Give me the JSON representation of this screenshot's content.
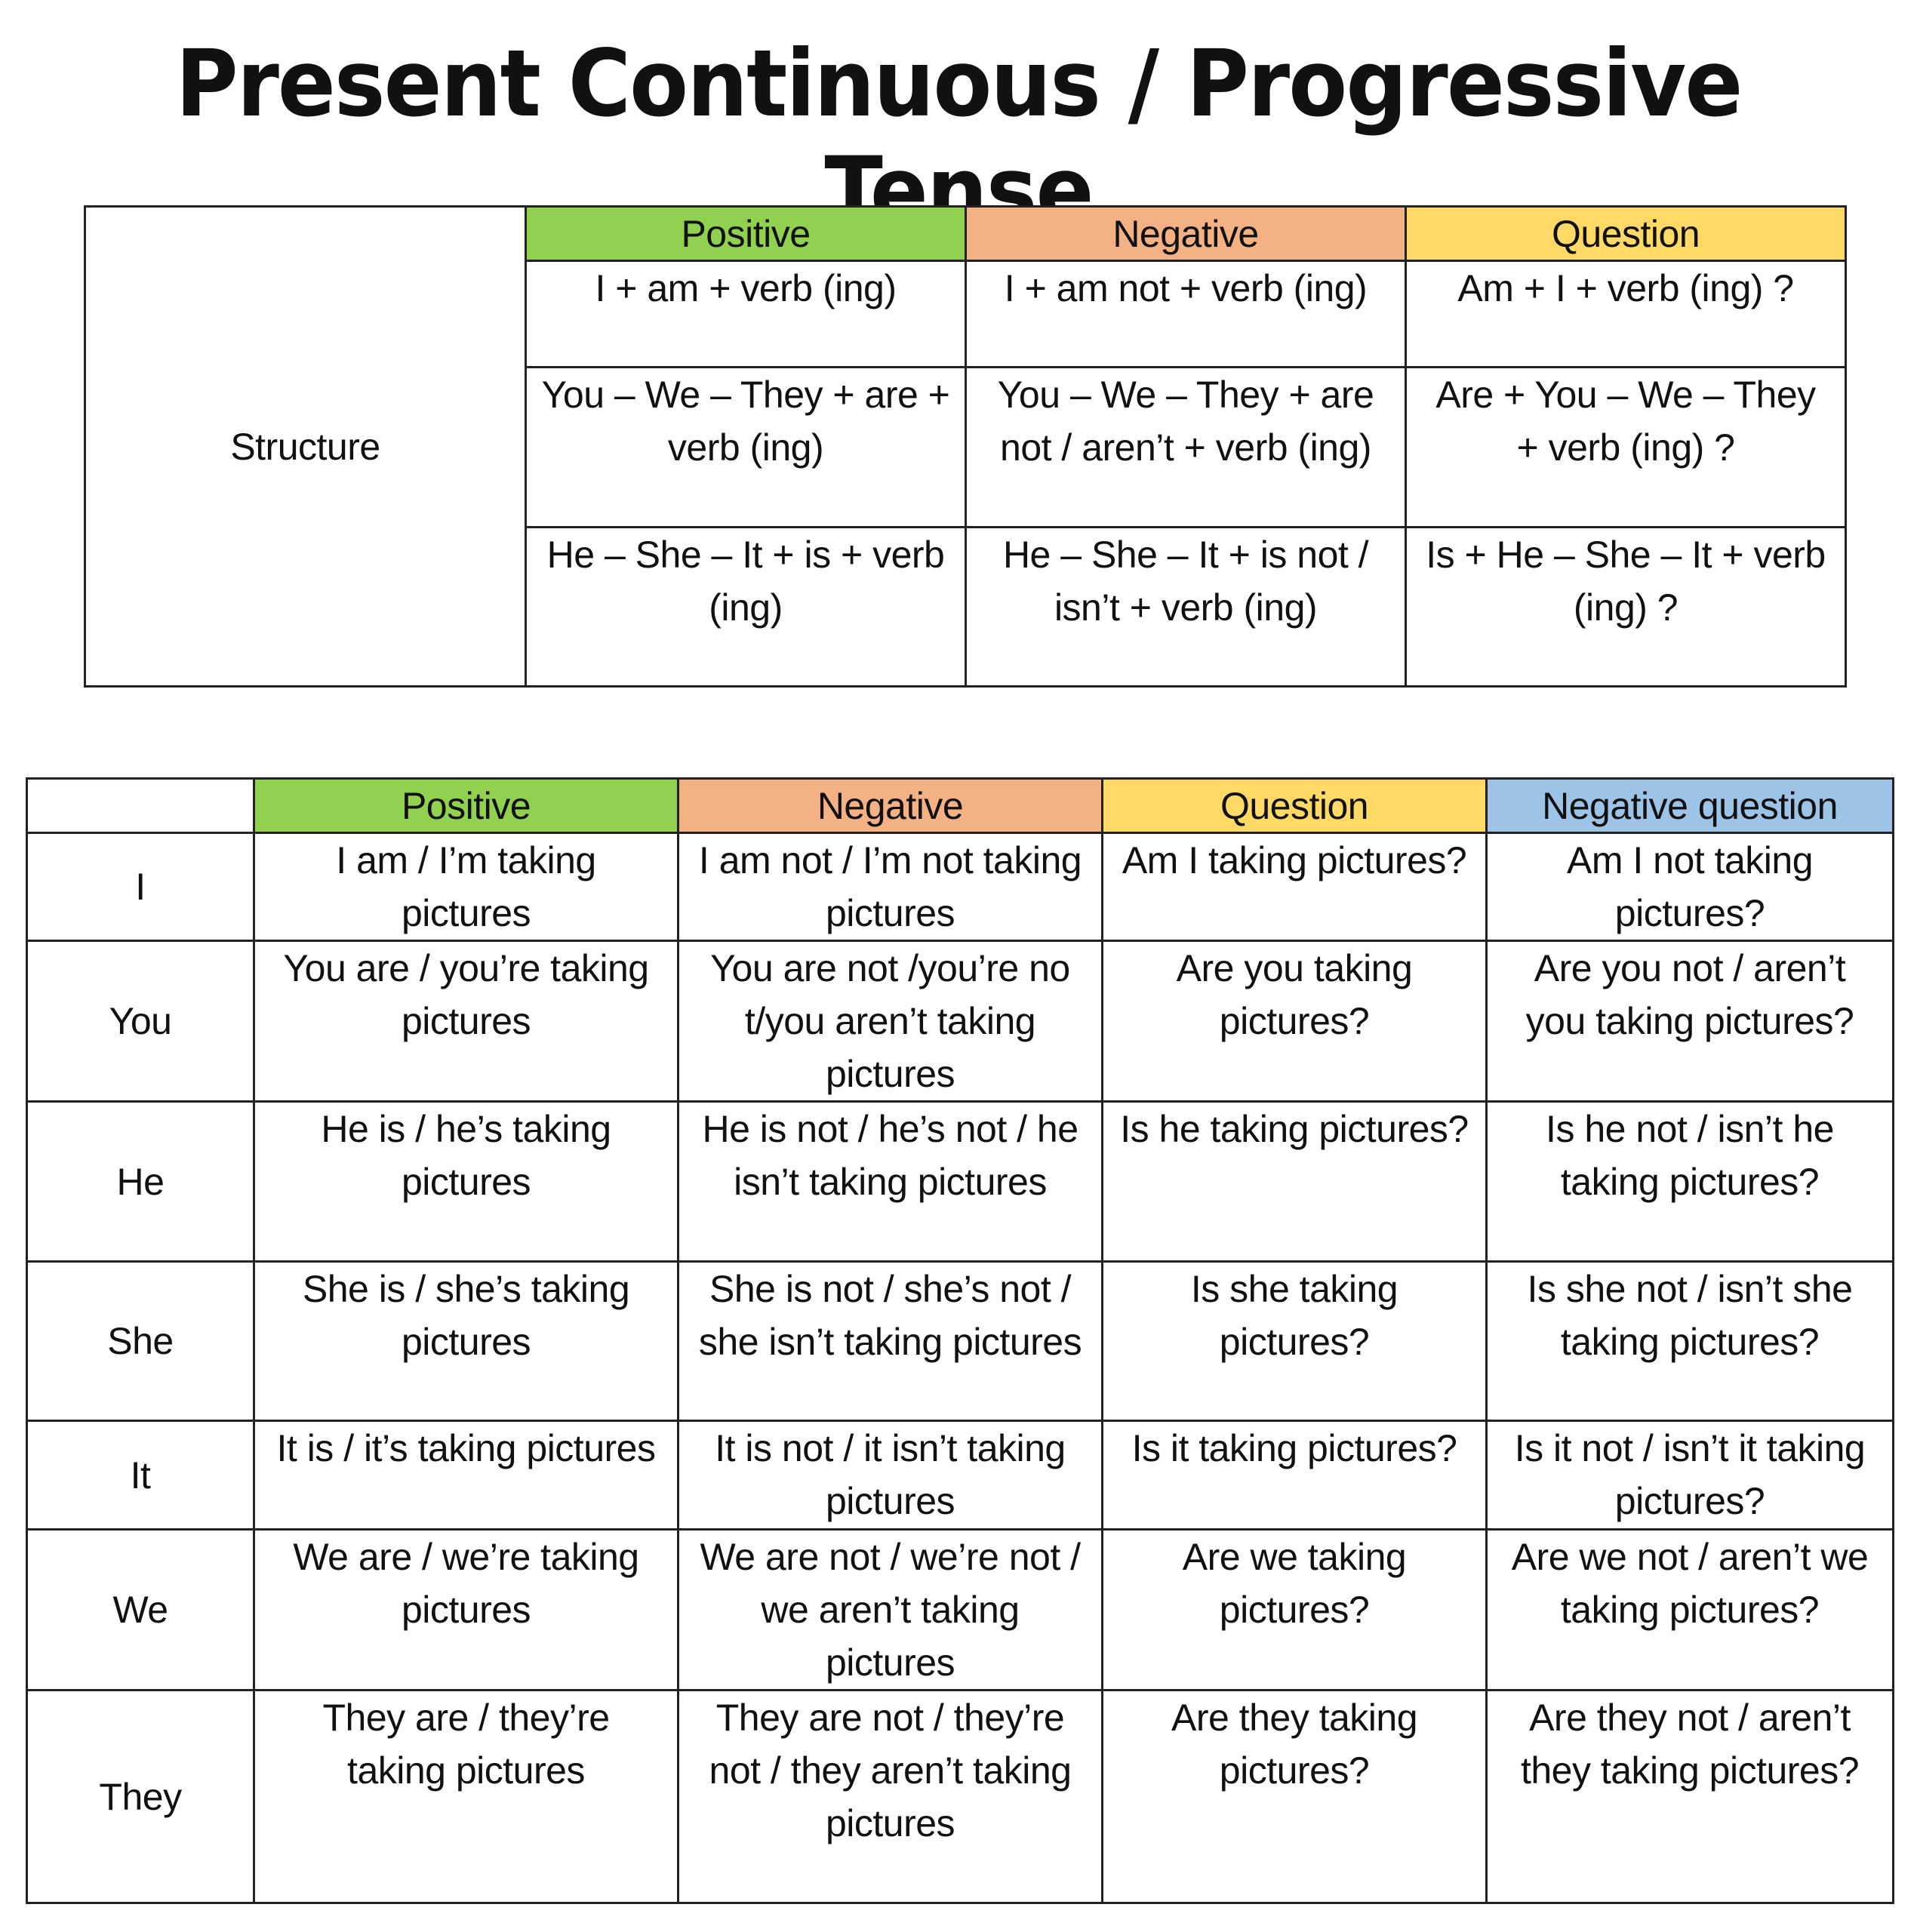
{
  "title": "Present Continuous / Progressive Tense",
  "colors": {
    "positive": "#92d050",
    "negative": "#f4b183",
    "question": "#ffd966",
    "negative_question": "#9dc3e6"
  },
  "structure_table": {
    "row_label": "Structure",
    "headers": [
      "Positive",
      "Negative",
      "Question"
    ],
    "rows": [
      [
        "I + am + verb (ing)",
        "I + am not + verb (ing)",
        "Am + I + verb (ing) ?"
      ],
      [
        "You – We – They + are + verb (ing)",
        "You – We – They + are not / aren’t + verb (ing)",
        "Are + You – We – They  + verb (ing) ?"
      ],
      [
        "He – She – It + is + verb (ing)",
        "He – She – It + is not / isn’t  + verb (ing)",
        "Is + He – She – It + verb (ing) ?"
      ]
    ]
  },
  "examples_table": {
    "headers": [
      "",
      "Positive",
      "Negative",
      "Question",
      "Negative question"
    ],
    "rows": [
      [
        "I",
        "I am / I’m taking pictures",
        "I am not / I’m not taking pictures",
        "Am I taking pictures?",
        "Am I not taking pictures?"
      ],
      [
        "You",
        "You are / you’re taking pictures",
        "You are not /you’re no t/you aren’t taking pictures",
        "Are you taking pictures?",
        "Are you not / aren’t you taking pictures?"
      ],
      [
        "He",
        "He is / he’s taking pictures",
        "He is not / he’s not / he isn’t taking pictures",
        "Is he taking pictures?",
        "Is he not / isn’t he taking pictures?"
      ],
      [
        "She",
        "She is / she’s taking pictures",
        "She is not / she’s not / she isn’t taking pictures",
        "Is she taking pictures?",
        "Is she not / isn’t she taking pictures?"
      ],
      [
        "It",
        "It is / it’s taking pictures",
        "It is not / it isn’t taking pictures",
        "Is it taking pictures?",
        "Is it not / isn’t it taking pictures?"
      ],
      [
        "We",
        "We are / we’re taking pictures",
        "We are not / we’re not / we aren’t taking pictures",
        "Are we taking pictures?",
        "Are we not / aren’t we taking pictures?"
      ],
      [
        "They",
        "They are / they’re taking pictures",
        "They are not / they’re not / they aren’t taking pictures",
        "Are they taking pictures?",
        "Are they not / aren’t they taking pictures?"
      ]
    ]
  }
}
